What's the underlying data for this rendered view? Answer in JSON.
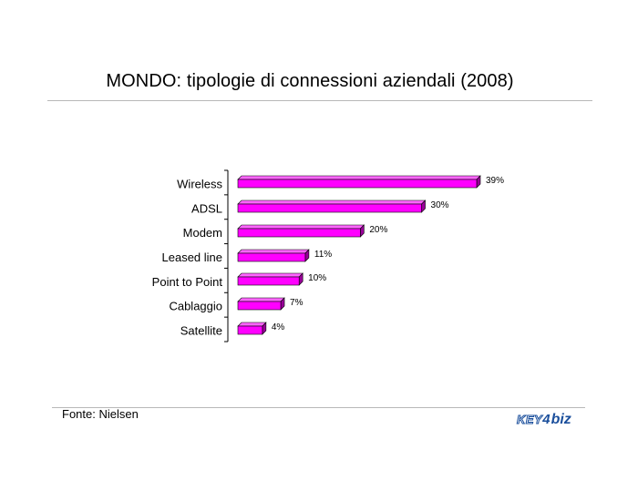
{
  "title": "MONDO: tipologie di connessioni aziendali (2008)",
  "source": "Fonte: Nielsen",
  "logo": {
    "left": "KEY",
    "mid": "4",
    "right": "biz"
  },
  "colors": {
    "bar_front": "#ff00ff",
    "bar_top": "#ff66ff",
    "bar_side": "#990099",
    "axis": "#000000",
    "rule": "#b8b8b8"
  },
  "chart_data": {
    "type": "bar",
    "orientation": "horizontal",
    "title": "MONDO: tipologie di connessioni aziendali (2008)",
    "categories": [
      "Wireless",
      "ADSL",
      "Modem",
      "Leased line",
      "Point to Point",
      "Cablaggio",
      "Satellite"
    ],
    "values": [
      39,
      30,
      20,
      11,
      10,
      7,
      4
    ],
    "data_labels": [
      "39%",
      "30%",
      "20%",
      "11%",
      "10%",
      "7%",
      "4%"
    ],
    "unit": "%",
    "xlim": [
      0,
      39
    ],
    "grid": false,
    "legend": "none",
    "style": "3d"
  }
}
